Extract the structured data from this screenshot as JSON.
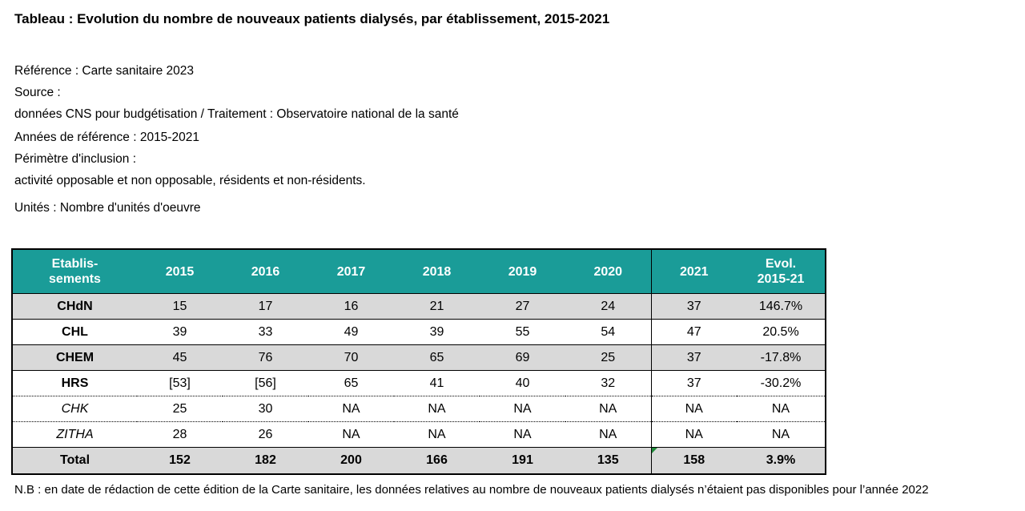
{
  "title": "Tableau : Evolution du nombre de nouveaux patients dialysés, par établissement, 2015-2021",
  "meta": {
    "reference": "Référence : Carte sanitaire 2023",
    "source_label": "Source :",
    "source_value": "données CNS pour budgétisation / Traitement : Observatoire national de la santé",
    "years": "Années de référence : 2015-2021",
    "perimeter_label": "Périmètre d'inclusion :",
    "perimeter_value": "activité opposable et non opposable, résidents et non-résidents.",
    "units": "Unités : Nombre d'unités d'oeuvre"
  },
  "table": {
    "headers": {
      "etab_line1": "Etablis-",
      "etab_line2": "sements",
      "y2015": "2015",
      "y2016": "2016",
      "y2017": "2017",
      "y2018": "2018",
      "y2019": "2019",
      "y2020": "2020",
      "y2021": "2021",
      "evol_line1": "Evol.",
      "evol_line2": "2015-21"
    },
    "rows": [
      {
        "name": "CHdN",
        "values": [
          "15",
          "17",
          "16",
          "21",
          "27",
          "24",
          "37",
          "146.7%"
        ]
      },
      {
        "name": "CHL",
        "values": [
          "39",
          "33",
          "49",
          "39",
          "55",
          "54",
          "47",
          "20.5%"
        ]
      },
      {
        "name": "CHEM",
        "values": [
          "45",
          "76",
          "70",
          "65",
          "69",
          "25",
          "37",
          "-17.8%"
        ]
      },
      {
        "name": "HRS",
        "values": [
          "[53]",
          "[56]",
          "65",
          "41",
          "40",
          "32",
          "37",
          "-30.2%"
        ]
      },
      {
        "name": "CHK",
        "values": [
          "25",
          "30",
          "NA",
          "NA",
          "NA",
          "NA",
          "NA",
          "NA"
        ]
      },
      {
        "name": "ZITHA",
        "values": [
          "28",
          "26",
          "NA",
          "NA",
          "NA",
          "NA",
          "NA",
          "NA"
        ]
      }
    ],
    "total": {
      "name": "Total",
      "values": [
        "152",
        "182",
        "200",
        "166",
        "191",
        "135",
        "158",
        "3.9%"
      ]
    }
  },
  "note": "N.B : en date de rédaction de cette édition de la Carte sanitaire, les données relatives au nombre de nouveaux patients dialysés n’étaient pas disponibles pour l’année 2022"
}
